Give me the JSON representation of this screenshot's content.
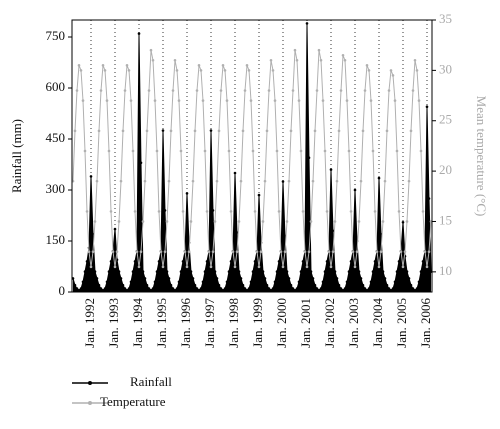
{
  "chart_data": {
    "type": "line",
    "y_label": "Rainfall (mm)",
    "y2_label": "Mean temperature (°C)",
    "categories": [
      null,
      null,
      null,
      null,
      null,
      null,
      null,
      null,
      null,
      "Jan. 1992",
      null,
      null,
      null,
      null,
      null,
      null,
      null,
      null,
      null,
      null,
      null,
      "Jan. 1993",
      null,
      null,
      null,
      null,
      null,
      null,
      null,
      null,
      null,
      null,
      null,
      "Jan. 1994",
      null,
      null,
      null,
      null,
      null,
      null,
      null,
      null,
      null,
      null,
      null,
      "Jan. 1995",
      null,
      null,
      null,
      null,
      null,
      null,
      null,
      null,
      null,
      null,
      null,
      "Jan. 1996",
      null,
      null,
      null,
      null,
      null,
      null,
      null,
      null,
      null,
      null,
      null,
      "Jan. 1997",
      null,
      null,
      null,
      null,
      null,
      null,
      null,
      null,
      null,
      null,
      null,
      "Jan. 1998",
      null,
      null,
      null,
      null,
      null,
      null,
      null,
      null,
      null,
      null,
      null,
      "Jan. 1999",
      null,
      null,
      null,
      null,
      null,
      null,
      null,
      null,
      null,
      null,
      null,
      "Jan. 2000",
      null,
      null,
      null,
      null,
      null,
      null,
      null,
      null,
      null,
      null,
      null,
      "Jan. 2001",
      null,
      null,
      null,
      null,
      null,
      null,
      null,
      null,
      null,
      null,
      null,
      "Jan. 2002",
      null,
      null,
      null,
      null,
      null,
      null,
      null,
      null,
      null,
      null,
      null,
      "Jan. 2003",
      null,
      null,
      null,
      null,
      null,
      null,
      null,
      null,
      null,
      null,
      null,
      "Jan. 2004",
      null,
      null,
      null,
      null,
      null,
      null,
      null,
      null,
      null,
      null,
      null,
      "Jan. 2005",
      null,
      null,
      null,
      null,
      null,
      null,
      null,
      null,
      null,
      null,
      null,
      "Jan. 2006",
      null,
      null
    ],
    "series": [
      {
        "name": "Rainfall",
        "color": "#000000",
        "fill": true,
        "values": [
          40,
          20,
          10,
          5,
          10,
          30,
          60,
          90,
          130,
          340,
          170,
          60,
          40,
          20,
          10,
          5,
          10,
          30,
          60,
          90,
          120,
          185,
          95,
          60,
          40,
          20,
          10,
          5,
          10,
          30,
          60,
          90,
          120,
          760,
          380,
          60,
          40,
          20,
          10,
          5,
          10,
          30,
          60,
          90,
          120,
          475,
          240,
          60,
          40,
          20,
          10,
          5,
          10,
          30,
          60,
          90,
          120,
          290,
          145,
          60,
          40,
          20,
          10,
          5,
          10,
          30,
          60,
          90,
          120,
          475,
          240,
          60,
          40,
          20,
          10,
          5,
          10,
          30,
          60,
          90,
          120,
          350,
          175,
          60,
          40,
          20,
          10,
          5,
          10,
          30,
          60,
          90,
          120,
          285,
          145,
          60,
          40,
          20,
          10,
          5,
          10,
          30,
          60,
          90,
          120,
          325,
          165,
          60,
          40,
          20,
          10,
          5,
          10,
          30,
          60,
          90,
          120,
          790,
          395,
          60,
          40,
          20,
          10,
          5,
          10,
          30,
          60,
          90,
          120,
          360,
          180,
          60,
          40,
          20,
          10,
          5,
          10,
          30,
          60,
          90,
          120,
          300,
          150,
          60,
          40,
          20,
          10,
          5,
          10,
          30,
          60,
          90,
          120,
          335,
          170,
          60,
          40,
          20,
          10,
          5,
          10,
          30,
          60,
          90,
          120,
          205,
          105,
          60,
          40,
          20,
          10,
          5,
          10,
          30,
          60,
          90,
          120,
          545,
          275,
          60
        ]
      },
      {
        "name": "Temperature",
        "color": "#b0b0b0",
        "axis": "y2",
        "values": [
          19,
          24,
          28,
          30.5,
          30,
          27,
          22,
          16,
          12,
          10.5,
          12,
          15,
          19,
          24,
          28,
          30.5,
          30,
          27,
          22,
          16,
          12,
          10.5,
          12,
          15,
          19,
          24,
          28,
          30.5,
          30,
          27,
          22,
          16,
          12,
          10.5,
          12,
          15,
          19,
          24,
          28,
          32,
          31,
          27,
          22,
          16,
          12,
          10.5,
          12,
          15,
          19,
          24,
          28,
          31,
          30,
          27,
          22,
          16,
          12,
          10.5,
          12,
          15,
          19,
          24,
          28,
          30.5,
          30,
          27,
          22,
          16,
          12,
          10.5,
          12,
          15,
          19,
          24,
          28,
          30.5,
          30,
          27,
          22,
          16,
          12,
          10.5,
          12,
          15,
          19,
          24,
          28,
          30.5,
          30,
          27,
          22,
          16,
          12,
          10.5,
          12,
          15,
          19,
          24,
          28,
          31,
          30,
          27,
          22,
          16,
          12,
          10.5,
          12,
          15,
          19,
          24,
          28,
          32,
          31,
          27,
          22,
          16,
          12,
          10.5,
          12,
          15,
          19,
          24,
          28,
          32,
          31,
          27,
          22,
          16,
          12,
          10.5,
          12,
          15,
          19,
          24,
          28,
          31.5,
          31,
          27,
          22,
          16,
          12,
          10.5,
          12,
          15,
          19,
          24,
          28,
          30.5,
          30,
          27,
          22,
          16,
          12,
          10.5,
          12,
          15,
          19,
          24,
          28,
          30,
          29.5,
          27,
          22,
          16,
          12,
          10.5,
          12,
          15,
          19,
          24,
          28,
          31,
          30,
          27,
          22,
          16,
          12,
          10.5,
          12,
          15
        ]
      }
    ],
    "ylim": [
      0,
      800
    ],
    "yticks": [
      0,
      150,
      300,
      450,
      600,
      750
    ],
    "y2lim": [
      8,
      35
    ],
    "y2ticks": [
      10,
      15,
      20,
      25,
      30,
      35
    ],
    "grid": true
  }
}
